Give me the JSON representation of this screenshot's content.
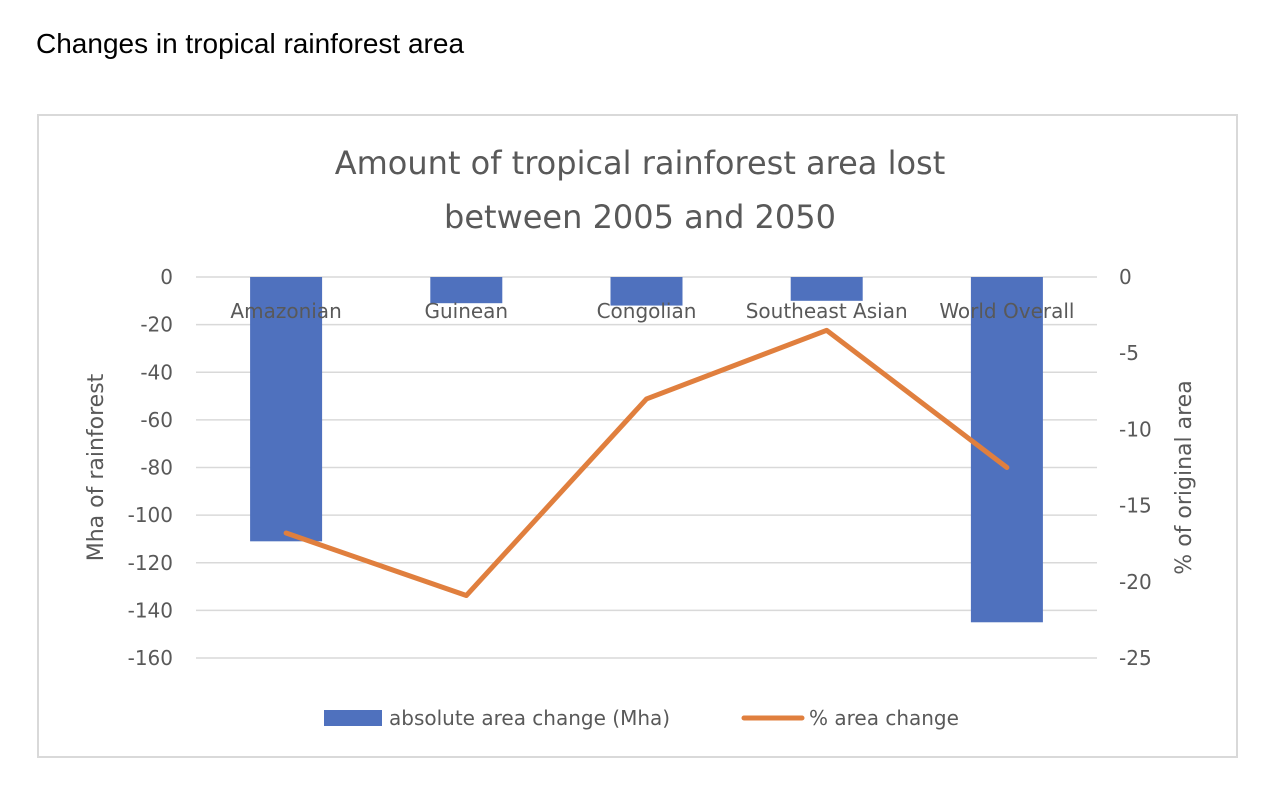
{
  "heading": "Changes in tropical rainforest area",
  "chart_data": {
    "type": "bar+line",
    "title_lines": [
      "Amount of tropical rainforest area lost",
      "between 2005 and 2050"
    ],
    "categories": [
      "Amazonian",
      "Guinean",
      "Congolian",
      "Southeast Asian",
      "World Overall"
    ],
    "ylabel": "Mha of rainforest",
    "y2label": "% of original area",
    "ylim": [
      -160,
      0
    ],
    "y2lim": [
      -25,
      0
    ],
    "yticks": [
      "0",
      "-20",
      "-40",
      "-60",
      "-80",
      "-100",
      "-120",
      "-140",
      "-160"
    ],
    "y2ticks": [
      "0",
      "-5",
      "-10",
      "-15",
      "-20",
      "-25"
    ],
    "grid": true,
    "legend_position": "bottom",
    "series": [
      {
        "name": "absolute area change (Mha)",
        "type": "bar",
        "axis": "left",
        "color": "#4f71be",
        "values": [
          -111,
          -11,
          -12,
          -10,
          -145
        ]
      },
      {
        "name": "% area change",
        "type": "line",
        "axis": "right",
        "color": "#e07f3e",
        "values": [
          -16.8,
          -20.9,
          -8,
          -3.5,
          -12.5
        ]
      }
    ]
  }
}
